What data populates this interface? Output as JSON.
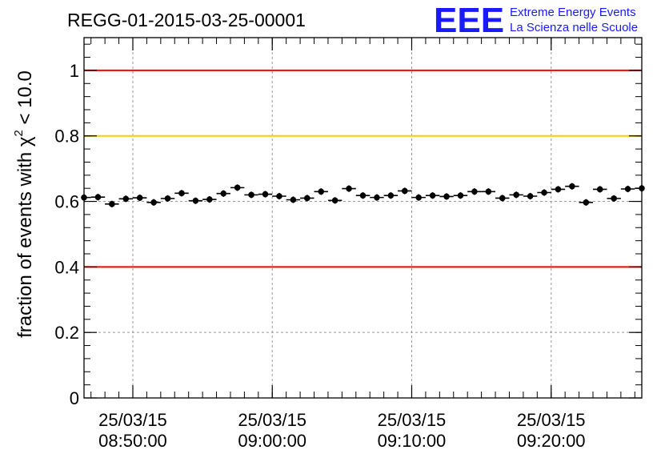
{
  "header": {
    "title": "REGG-01-2015-03-25-00001",
    "logo_text": "EEE",
    "logo_line1": "Extreme Energy Events",
    "logo_line2": "La Scienza nelle Scuole"
  },
  "chart_data": {
    "type": "scatter",
    "title": "REGG-01-2015-03-25-00001",
    "ylabel_main": "fraction of events with χ",
    "ylabel_sup": "2",
    "ylabel_tail": " < 10.0",
    "xlabel": "",
    "ylim": [
      0,
      1.1
    ],
    "yticks": [
      "0",
      "0.2",
      "0.4",
      "0.6",
      "0.8",
      "1"
    ],
    "ytick_values": [
      0,
      0.2,
      0.4,
      0.6,
      0.8,
      1.0
    ],
    "xticks": [
      {
        "minutes": 5,
        "date": "25/03/15",
        "time": "08:50:00"
      },
      {
        "minutes": 15,
        "date": "25/03/15",
        "time": "09:00:00"
      },
      {
        "minutes": 25,
        "date": "25/03/15",
        "time": "09:10:00"
      },
      {
        "minutes": 35,
        "date": "25/03/15",
        "time": "09:20:00"
      }
    ],
    "x_range_minutes": [
      1.5,
      41.5
    ],
    "x_origin": "08:45:00",
    "reference_lines": [
      {
        "y": 1.0,
        "color": "#ff0000"
      },
      {
        "y": 0.8,
        "color": "#ffcc00"
      },
      {
        "y": 0.4,
        "color": "#ff0000"
      }
    ],
    "grid": true,
    "marker_color": "#000000",
    "bin_half_width_minutes": 0.5,
    "y_error": 0.01,
    "x": [
      1.5,
      2.5,
      3.5,
      4.5,
      5.5,
      6.5,
      7.5,
      8.5,
      9.5,
      10.5,
      11.5,
      12.5,
      13.5,
      14.5,
      15.5,
      16.5,
      17.5,
      18.5,
      19.5,
      20.5,
      21.5,
      22.5,
      23.5,
      24.5,
      25.5,
      26.5,
      27.5,
      28.5,
      29.5,
      30.5,
      31.5,
      32.5,
      33.5,
      34.5,
      35.5,
      36.5,
      37.5,
      38.5,
      39.5,
      40.5,
      41.5
    ],
    "y": [
      0.612,
      0.613,
      0.592,
      0.608,
      0.611,
      0.597,
      0.609,
      0.625,
      0.602,
      0.606,
      0.624,
      0.642,
      0.62,
      0.622,
      0.616,
      0.605,
      0.61,
      0.63,
      0.603,
      0.639,
      0.618,
      0.612,
      0.618,
      0.632,
      0.612,
      0.618,
      0.615,
      0.618,
      0.63,
      0.63,
      0.61,
      0.62,
      0.616,
      0.627,
      0.637,
      0.646,
      0.597,
      0.637,
      0.609,
      0.638,
      0.64
    ]
  }
}
